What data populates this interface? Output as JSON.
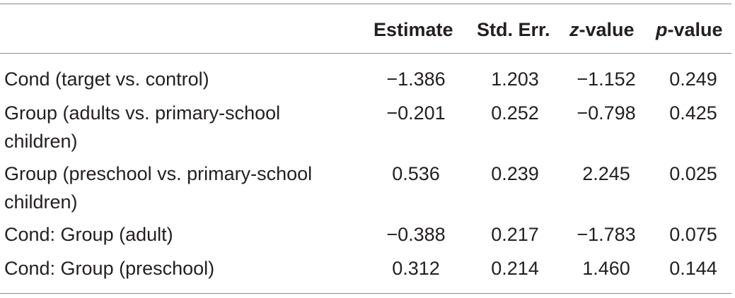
{
  "table": {
    "headers": {
      "estimate": "Estimate",
      "std_err": "Std. Err.",
      "z_italic": "z",
      "z_rest": "-value",
      "p_italic": "p",
      "p_rest": "-value"
    },
    "rows": [
      {
        "label": "Cond (target vs. control)",
        "estimate": "−1.386",
        "std_err": "1.203",
        "z": "−1.152",
        "p": "0.249"
      },
      {
        "label": "Group (adults vs. primary-school children)",
        "estimate": "−0.201",
        "std_err": "0.252",
        "z": "−0.798",
        "p": "0.425"
      },
      {
        "label": "Group (preschool vs. primary-school children)",
        "estimate": "0.536",
        "std_err": "0.239",
        "z": "2.245",
        "p": "0.025"
      },
      {
        "label": "Cond: Group (adult)",
        "estimate": "−0.388",
        "std_err": "0.217",
        "z": "−1.783",
        "p": "0.075"
      },
      {
        "label": "Cond: Group (preschool)",
        "estimate": "0.312",
        "std_err": "0.214",
        "z": "1.460",
        "p": "0.144"
      }
    ]
  }
}
